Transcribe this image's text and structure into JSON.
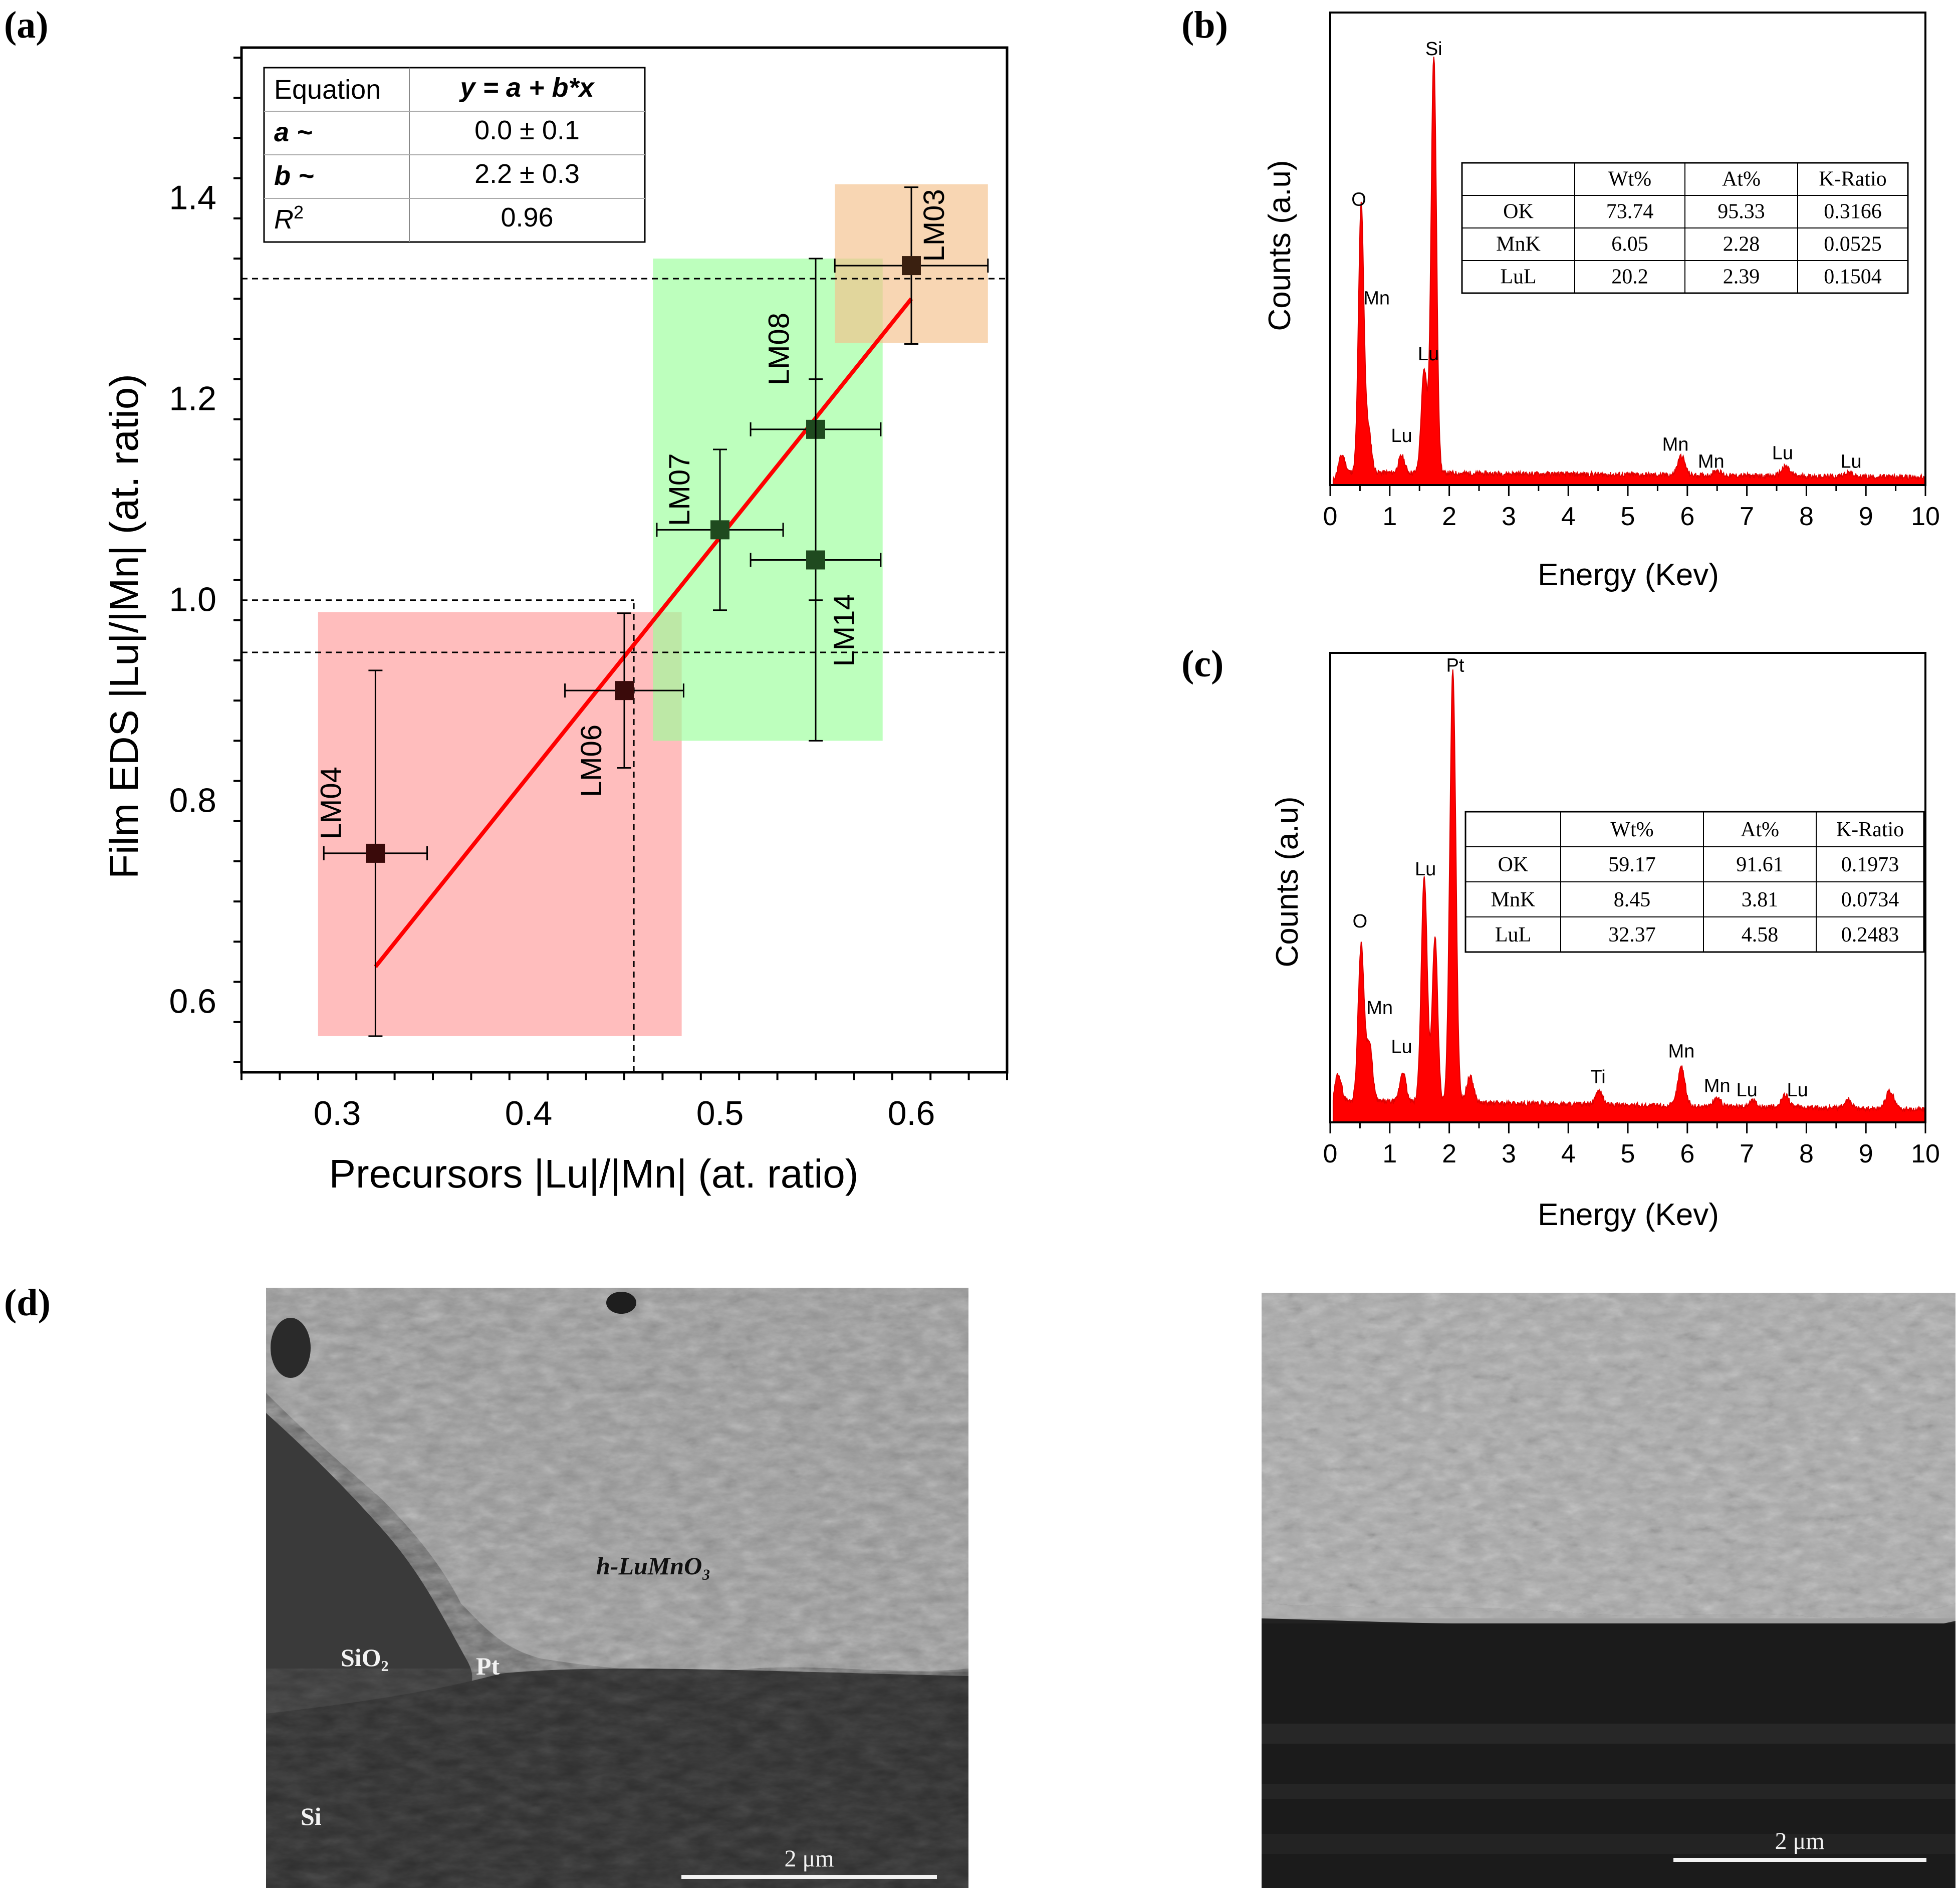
{
  "panel_labels": {
    "a": "(a)",
    "b": "(b)",
    "c": "(c)",
    "d": "(d)"
  },
  "chart_data": [
    {
      "id": "a",
      "type": "scatter",
      "xlabel": "Precursors |Lu|/|Mn| (at. ratio)",
      "ylabel": "Film EDS |Lu|/|Mn| (at. ratio)",
      "xlim": [
        0.25,
        0.65
      ],
      "ylim": [
        0.53,
        1.55
      ],
      "xticks": [
        0.3,
        0.4,
        0.5,
        0.6
      ],
      "xtick_labels": [
        "0.3",
        "0.4",
        "0.5",
        "0.6"
      ],
      "yticks": [
        0.6,
        0.8,
        1.0,
        1.2,
        1.4
      ],
      "ytick_labels": [
        "0.6",
        "0.8",
        "1.0",
        "1.2",
        "1.4"
      ],
      "points": [
        {
          "label": "LM04",
          "x": 0.32,
          "y": 0.748,
          "xerr": 0.027,
          "yerr": 0.182,
          "color": "#3a0a0a",
          "label_dx": -0.018,
          "label_dy": 0.05
        },
        {
          "label": "LM06",
          "x": 0.45,
          "y": 0.91,
          "xerr": 0.031,
          "yerr": 0.077,
          "color": "#3a0a0a",
          "label_dx": -0.012,
          "label_dy": -0.07
        },
        {
          "label": "LM07",
          "x": 0.5,
          "y": 1.07,
          "xerr": 0.033,
          "yerr": 0.08,
          "color": "#1f4a1f",
          "label_dx": -0.016,
          "label_dy": 0.04
        },
        {
          "label": "LM08",
          "x": 0.55,
          "y": 1.17,
          "xerr": 0.034,
          "yerr": 0.17,
          "color": "#1f4a1f",
          "label_dx": -0.014,
          "label_dy": 0.08
        },
        {
          "label": "LM14",
          "x": 0.55,
          "y": 1.04,
          "xerr": 0.034,
          "yerr": 0.18,
          "color": "#1f4a1f",
          "label_dx": 0.02,
          "label_dy": -0.07
        },
        {
          "label": "LM03",
          "x": 0.6,
          "y": 1.333,
          "xerr": 0.04,
          "yerr": 0.078,
          "color": "#3a2010",
          "label_dx": 0.017,
          "label_dy": 0.04
        }
      ],
      "fit": {
        "x": [
          0.32,
          0.6
        ],
        "y": [
          0.635,
          1.3
        ],
        "color": "#ff0000"
      },
      "regions": [
        {
          "x": [
            0.29,
            0.48
          ],
          "y": [
            0.566,
            0.988
          ],
          "color": "#ff9999",
          "opacity": 0.65
        },
        {
          "x": [
            0.465,
            0.585
          ],
          "y": [
            0.86,
            1.34
          ],
          "color": "#99ff99",
          "opacity": 0.65
        },
        {
          "x": [
            0.56,
            0.64
          ],
          "y": [
            1.256,
            1.414
          ],
          "color": "#f5c08a",
          "opacity": 0.65
        }
      ],
      "dashed_h": [
        {
          "y": 1.32,
          "x0": 0.25
        },
        {
          "y": 1.0,
          "x0": 0.25,
          "x1": 0.455
        },
        {
          "y": 0.948,
          "x0": 0.25
        }
      ],
      "dashed_v": [
        {
          "x": 0.455,
          "y0": 0.53,
          "y1": 1.0
        }
      ],
      "table": {
        "header": [
          "Equation",
          "y = a + b*x"
        ],
        "rows": [
          [
            "a ~",
            "0.0 ± 0.1"
          ],
          [
            "b ~",
            "2.2 ± 0.3"
          ],
          [
            "R2",
            "0.96"
          ]
        ]
      }
    },
    {
      "id": "b",
      "type": "area",
      "xlabel": "Energy (Kev)",
      "ylabel": "Counts (a.u)",
      "xlim": [
        0,
        10
      ],
      "xticks": [
        0,
        1,
        2,
        3,
        4,
        5,
        6,
        7,
        8,
        9,
        10
      ],
      "xtick_labels": [
        "0",
        "1",
        "2",
        "3",
        "4",
        "5",
        "6",
        "7",
        "8",
        "9",
        "10"
      ],
      "baseline": 0.03,
      "peaks": [
        {
          "x": 0.2,
          "h": 0.04,
          "w": 0.05
        },
        {
          "x": 0.52,
          "h": 0.62,
          "w": 0.045
        },
        {
          "x": 0.64,
          "h": 0.1,
          "w": 0.05
        },
        {
          "x": 1.2,
          "h": 0.04,
          "w": 0.05
        },
        {
          "x": 1.58,
          "h": 0.24,
          "w": 0.05
        },
        {
          "x": 1.74,
          "h": 0.97,
          "w": 0.045
        },
        {
          "x": 5.9,
          "h": 0.045,
          "w": 0.06
        },
        {
          "x": 6.5,
          "h": 0.012,
          "w": 0.06
        },
        {
          "x": 7.65,
          "h": 0.022,
          "w": 0.07
        },
        {
          "x": 8.7,
          "h": 0.01,
          "w": 0.07
        }
      ],
      "annotations": [
        {
          "text": "O",
          "x": 0.48,
          "y": 0.65
        },
        {
          "text": "Si",
          "x": 1.74,
          "y": 1.0
        },
        {
          "text": "Mn",
          "x": 0.78,
          "y": 0.42
        },
        {
          "text": "Lu",
          "x": 1.65,
          "y": 0.29
        },
        {
          "text": "Lu",
          "x": 1.2,
          "y": 0.1
        },
        {
          "text": "Mn",
          "x": 5.8,
          "y": 0.08
        },
        {
          "text": "Mn",
          "x": 6.4,
          "y": 0.04
        },
        {
          "text": "Lu",
          "x": 7.6,
          "y": 0.06
        },
        {
          "text": "Lu",
          "x": 8.75,
          "y": 0.04
        }
      ],
      "table": {
        "header": [
          "",
          "Wt%",
          "At%",
          "K-Ratio"
        ],
        "rows": [
          [
            "OK",
            "73.74",
            "95.33",
            "0.3166"
          ],
          [
            "MnK",
            "6.05",
            "2.28",
            "0.0525"
          ],
          [
            "LuL",
            "20.2",
            "2.39",
            "0.1504"
          ]
        ]
      }
    },
    {
      "id": "c",
      "type": "area",
      "xlabel": "Energy (Kev)",
      "ylabel": "Counts (a.u)",
      "xlim": [
        0,
        10
      ],
      "xticks": [
        0,
        1,
        2,
        3,
        4,
        5,
        6,
        7,
        8,
        9,
        10
      ],
      "xtick_labels": [
        "0",
        "1",
        "2",
        "3",
        "4",
        "5",
        "6",
        "7",
        "8",
        "9",
        "10"
      ],
      "baseline": 0.05,
      "peaks": [
        {
          "x": 0.12,
          "h": 0.07,
          "w": 0.06
        },
        {
          "x": 0.52,
          "h": 0.36,
          "w": 0.05
        },
        {
          "x": 0.66,
          "h": 0.13,
          "w": 0.05
        },
        {
          "x": 1.22,
          "h": 0.07,
          "w": 0.05
        },
        {
          "x": 1.58,
          "h": 0.52,
          "w": 0.05
        },
        {
          "x": 1.76,
          "h": 0.38,
          "w": 0.045
        },
        {
          "x": 2.06,
          "h": 1.0,
          "w": 0.05
        },
        {
          "x": 2.35,
          "h": 0.06,
          "w": 0.06
        },
        {
          "x": 4.52,
          "h": 0.03,
          "w": 0.06
        },
        {
          "x": 5.9,
          "h": 0.09,
          "w": 0.06
        },
        {
          "x": 6.5,
          "h": 0.02,
          "w": 0.06
        },
        {
          "x": 7.1,
          "h": 0.015,
          "w": 0.06
        },
        {
          "x": 7.65,
          "h": 0.03,
          "w": 0.06
        },
        {
          "x": 8.7,
          "h": 0.02,
          "w": 0.06
        },
        {
          "x": 9.4,
          "h": 0.04,
          "w": 0.07
        }
      ],
      "annotations": [
        {
          "text": "Pt",
          "x": 2.1,
          "y": 1.04
        },
        {
          "text": "Lu",
          "x": 1.6,
          "y": 0.57
        },
        {
          "text": "O",
          "x": 0.5,
          "y": 0.45
        },
        {
          "text": "Mn",
          "x": 0.83,
          "y": 0.25
        },
        {
          "text": "Lu",
          "x": 1.2,
          "y": 0.16
        },
        {
          "text": "Ti",
          "x": 4.5,
          "y": 0.09
        },
        {
          "text": "Mn",
          "x": 5.9,
          "y": 0.15
        },
        {
          "text": "Mn",
          "x": 6.5,
          "y": 0.07
        },
        {
          "text": "Lu",
          "x": 7.0,
          "y": 0.06
        },
        {
          "text": "Lu",
          "x": 7.85,
          "y": 0.06
        }
      ],
      "table": {
        "header": [
          "",
          "Wt%",
          "At%",
          "K-Ratio"
        ],
        "rows": [
          [
            "OK",
            "59.17",
            "91.61",
            "0.1973"
          ],
          [
            "MnK",
            "8.45",
            "3.81",
            "0.0734"
          ],
          [
            "LuL",
            "32.37",
            "4.58",
            "0.2483"
          ]
        ]
      }
    }
  ],
  "sem_left": {
    "labels": {
      "film": "h-LuMnO3",
      "pt": "Pt",
      "sio2": "SiO2",
      "si": "Si"
    },
    "scale": "2 μm"
  },
  "sem_right": {
    "scale": "2 μm"
  },
  "colors": {
    "spectrum": "#ff0000",
    "fit": "#ff0000"
  }
}
